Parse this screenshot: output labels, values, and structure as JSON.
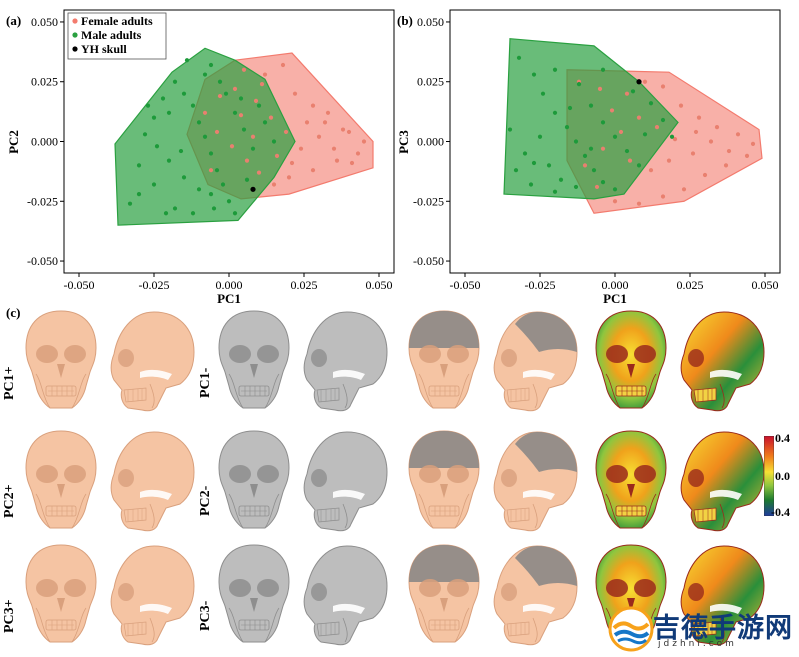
{
  "chart_data": [
    {
      "type": "scatter",
      "panel_label": "(a)",
      "xlabel": "PC1",
      "ylabel": "PC2",
      "xlim": [
        -0.055,
        0.055
      ],
      "ylim": [
        -0.055,
        0.055
      ],
      "xticks": [
        "-0.050",
        "-0.025",
        "0.000",
        "0.025",
        "0.050"
      ],
      "yticks": [
        "0.050",
        "0.025",
        "0.000",
        "-0.025",
        "-0.050"
      ],
      "xtick_values": [
        -0.05,
        -0.025,
        0,
        0.025,
        0.05
      ],
      "ytick_values": [
        0.05,
        0.025,
        0,
        -0.025,
        -0.05
      ],
      "legend": [
        {
          "label": "Female adults",
          "color": "#f37b6e"
        },
        {
          "label": "Male adults",
          "color": "#2aa040"
        },
        {
          "label": "YH skull",
          "color": "#000000"
        }
      ],
      "series": [
        {
          "name": "Female adults",
          "color": "#f37b6e",
          "hull": [
            [
              0.002,
              0.034
            ],
            [
              0.021,
              0.037
            ],
            [
              0.048,
              0.0
            ],
            [
              0.048,
              -0.011
            ],
            [
              0.02,
              -0.022
            ],
            [
              0.004,
              -0.024
            ],
            [
              -0.007,
              -0.018
            ],
            [
              -0.014,
              0.003
            ],
            [
              -0.008,
              0.026
            ]
          ],
          "points": [
            [
              0.005,
              0.03
            ],
            [
              0.012,
              0.028
            ],
            [
              0.018,
              0.032
            ],
            [
              0.022,
              0.02
            ],
            [
              0.028,
              0.015
            ],
            [
              0.032,
              0.008
            ],
            [
              0.038,
              0.005
            ],
            [
              0.045,
              0.0
            ],
            [
              0.043,
              -0.005
            ],
            [
              0.036,
              -0.008
            ],
            [
              0.028,
              -0.012
            ],
            [
              0.02,
              -0.015
            ],
            [
              0.015,
              -0.018
            ],
            [
              0.01,
              -0.013
            ],
            [
              0.006,
              -0.008
            ],
            [
              0.001,
              -0.002
            ],
            [
              -0.004,
              0.004
            ],
            [
              -0.008,
              0.012
            ],
            [
              -0.003,
              0.019
            ],
            [
              0.004,
              0.011
            ],
            [
              0.009,
              0.017
            ],
            [
              0.014,
              0.01
            ],
            [
              0.019,
              0.004
            ],
            [
              0.024,
              -0.003
            ],
            [
              0.03,
              0.002
            ],
            [
              0.035,
              -0.003
            ],
            [
              0.041,
              -0.009
            ],
            [
              0.026,
              0.008
            ],
            [
              0.016,
              -0.006
            ],
            [
              0.008,
              0.002
            ],
            [
              0.002,
              0.022
            ],
            [
              -0.006,
              -0.012
            ],
            [
              0.011,
              0.024
            ],
            [
              0.021,
              -0.009
            ],
            [
              0.033,
              0.012
            ],
            [
              0.04,
              0.004
            ]
          ]
        },
        {
          "name": "Male adults",
          "color": "#2aa040",
          "hull": [
            [
              -0.008,
              0.039
            ],
            [
              0.002,
              0.034
            ],
            [
              0.012,
              0.026
            ],
            [
              0.022,
              0.0
            ],
            [
              0.015,
              -0.015
            ],
            [
              0.003,
              -0.033
            ],
            [
              -0.037,
              -0.035
            ],
            [
              -0.038,
              -0.001
            ],
            [
              -0.019,
              0.029
            ]
          ],
          "points": [
            [
              -0.03,
              -0.01
            ],
            [
              -0.028,
              0.003
            ],
            [
              -0.025,
              0.01
            ],
            [
              -0.022,
              0.018
            ],
            [
              -0.018,
              0.025
            ],
            [
              -0.015,
              0.02
            ],
            [
              -0.012,
              0.015
            ],
            [
              -0.01,
              0.008
            ],
            [
              -0.008,
              0.002
            ],
            [
              -0.006,
              -0.005
            ],
            [
              -0.004,
              -0.012
            ],
            [
              -0.002,
              -0.018
            ],
            [
              0.0,
              -0.025
            ],
            [
              0.002,
              -0.03
            ],
            [
              -0.005,
              -0.028
            ],
            [
              -0.01,
              -0.02
            ],
            [
              -0.015,
              -0.015
            ],
            [
              -0.02,
              -0.008
            ],
            [
              -0.025,
              -0.018
            ],
            [
              -0.03,
              -0.022
            ],
            [
              -0.033,
              -0.026
            ],
            [
              -0.018,
              -0.028
            ],
            [
              -0.012,
              -0.03
            ],
            [
              -0.006,
              -0.022
            ],
            [
              0.002,
              0.012
            ],
            [
              0.005,
              0.005
            ],
            [
              0.008,
              -0.003
            ],
            [
              0.01,
              0.015
            ],
            [
              0.012,
              0.008
            ],
            [
              0.015,
              0.0
            ],
            [
              -0.003,
              0.025
            ],
            [
              -0.006,
              0.032
            ],
            [
              -0.014,
              0.034
            ],
            [
              -0.02,
              0.012
            ],
            [
              -0.024,
              -0.002
            ],
            [
              -0.016,
              -0.004
            ],
            [
              -0.001,
              0.02
            ],
            [
              0.006,
              -0.016
            ],
            [
              -0.008,
              0.028
            ],
            [
              -0.027,
              0.015
            ],
            [
              -0.021,
              -0.03
            ],
            [
              0.004,
              0.018
            ]
          ]
        },
        {
          "name": "YH skull",
          "color": "#000000",
          "points": [
            [
              0.008,
              -0.02
            ]
          ]
        }
      ]
    },
    {
      "type": "scatter",
      "panel_label": "(b)",
      "xlabel": "PC1",
      "ylabel": "PC3",
      "xlim": [
        -0.055,
        0.055
      ],
      "ylim": [
        -0.055,
        0.055
      ],
      "xticks": [
        "-0.050",
        "-0.025",
        "0.000",
        "0.025",
        "0.050"
      ],
      "yticks": [
        "0.050",
        "0.025",
        "0.000",
        "-0.025",
        "-0.050"
      ],
      "xtick_values": [
        -0.05,
        -0.025,
        0,
        0.025,
        0.05
      ],
      "ytick_values": [
        0.05,
        0.025,
        0,
        -0.025,
        -0.05
      ],
      "series": [
        {
          "name": "Female adults",
          "color": "#f37b6e",
          "hull": [
            [
              -0.016,
              0.03
            ],
            [
              0.018,
              0.029
            ],
            [
              0.048,
              0.005
            ],
            [
              0.049,
              -0.007
            ],
            [
              0.023,
              -0.025
            ],
            [
              -0.007,
              -0.03
            ],
            [
              -0.016,
              -0.008
            ]
          ],
          "points": [
            [
              -0.012,
              0.025
            ],
            [
              -0.005,
              0.022
            ],
            [
              0.004,
              0.02
            ],
            [
              0.01,
              0.025
            ],
            [
              0.016,
              0.023
            ],
            [
              0.022,
              0.015
            ],
            [
              0.028,
              0.01
            ],
            [
              0.034,
              0.006
            ],
            [
              0.041,
              0.003
            ],
            [
              0.046,
              -0.001
            ],
            [
              0.044,
              -0.006
            ],
            [
              0.037,
              -0.01
            ],
            [
              0.03,
              -0.014
            ],
            [
              0.023,
              -0.02
            ],
            [
              0.016,
              -0.023
            ],
            [
              0.008,
              -0.026
            ],
            [
              0.0,
              -0.025
            ],
            [
              -0.006,
              -0.019
            ],
            [
              -0.01,
              -0.01
            ],
            [
              -0.004,
              -0.003
            ],
            [
              0.002,
              0.004
            ],
            [
              0.008,
              0.01
            ],
            [
              0.014,
              0.006
            ],
            [
              0.02,
              0.001
            ],
            [
              0.026,
              -0.005
            ],
            [
              0.032,
              0.0
            ],
            [
              0.038,
              -0.004
            ],
            [
              0.012,
              -0.012
            ],
            [
              0.005,
              -0.008
            ],
            [
              -0.001,
              0.013
            ],
            [
              0.018,
              -0.008
            ],
            [
              0.027,
              0.004
            ]
          ]
        },
        {
          "name": "Male adults",
          "color": "#2aa040",
          "hull": [
            [
              -0.035,
              0.043
            ],
            [
              -0.007,
              0.04
            ],
            [
              0.008,
              0.025
            ],
            [
              0.021,
              0.008
            ],
            [
              0.003,
              -0.022
            ],
            [
              -0.007,
              -0.024
            ],
            [
              -0.037,
              -0.022
            ]
          ],
          "points": [
            [
              -0.032,
              0.035
            ],
            [
              -0.027,
              0.028
            ],
            [
              -0.024,
              0.02
            ],
            [
              -0.02,
              0.012
            ],
            [
              -0.016,
              0.006
            ],
            [
              -0.013,
              0.0
            ],
            [
              -0.01,
              -0.006
            ],
            [
              -0.007,
              -0.012
            ],
            [
              -0.004,
              -0.017
            ],
            [
              0.0,
              -0.02
            ],
            [
              -0.02,
              -0.021
            ],
            [
              -0.028,
              -0.018
            ],
            [
              -0.033,
              -0.012
            ],
            [
              -0.03,
              -0.005
            ],
            [
              -0.025,
              0.002
            ],
            [
              -0.022,
              -0.01
            ],
            [
              -0.018,
              -0.016
            ],
            [
              -0.013,
              -0.019
            ],
            [
              -0.008,
              0.015
            ],
            [
              -0.004,
              0.008
            ],
            [
              0.0,
              0.002
            ],
            [
              0.004,
              -0.004
            ],
            [
              0.008,
              -0.01
            ],
            [
              0.012,
              0.016
            ],
            [
              0.016,
              0.009
            ],
            [
              -0.004,
              0.03
            ],
            [
              -0.012,
              0.024
            ],
            [
              -0.02,
              0.03
            ],
            [
              0.006,
              0.021
            ],
            [
              -0.015,
              0.014
            ],
            [
              -0.027,
              -0.009
            ],
            [
              0.01,
              0.003
            ],
            [
              -0.008,
              -0.003
            ],
            [
              -0.035,
              0.005
            ],
            [
              0.019,
              0.002
            ]
          ]
        },
        {
          "name": "YH skull",
          "color": "#000000",
          "points": [
            [
              0.008,
              0.025
            ]
          ]
        }
      ]
    }
  ],
  "panel_c": {
    "label": "(c)",
    "rows": [
      "PC1+",
      "PC1-",
      "PC2+",
      "PC2-",
      "PC3+",
      "PC3-"
    ],
    "colors": {
      "positive": "#f5c4a3",
      "positive_shade": "#d9a07d",
      "negative": "#bdbdbd",
      "negative_shade": "#8e8e8e",
      "overlay_dark": "#858585"
    },
    "colorbar": {
      "max_label": "0.4",
      "mid_label": "0.0",
      "min_label": "-0.4",
      "stops": [
        "#c8102e",
        "#f07b1b",
        "#f7e034",
        "#8ec63f",
        "#1d7b2f",
        "#1f3b9e"
      ]
    }
  },
  "watermark": {
    "name": "吉德手游网",
    "url": "jdzhni.com"
  }
}
